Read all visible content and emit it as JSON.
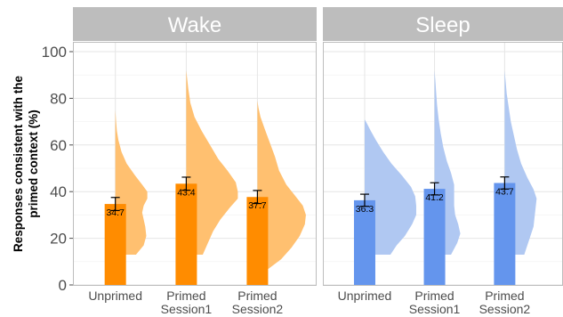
{
  "chart_data": {
    "type": "bar",
    "ylabel": "Responses consistent with the primed context (%)",
    "ylim": [
      0,
      100
    ],
    "yticks": [
      0,
      20,
      40,
      60,
      80,
      100
    ],
    "categories": [
      "Unprimed",
      "Primed Session1",
      "Primed Session2"
    ],
    "category_lines": [
      [
        "Unprimed"
      ],
      [
        "Primed",
        "Session1"
      ],
      [
        "Primed",
        "Session2"
      ]
    ],
    "grid": true,
    "panels": [
      {
        "name": "Wake",
        "values": [
          34.7,
          43.4,
          37.7
        ],
        "value_labels": [
          "34.7",
          "43.4",
          "37.7"
        ],
        "errors": [
          2.8,
          2.8,
          2.8
        ],
        "bar_color": "#ff8c00",
        "violin_color": "#ffc070",
        "violins": [
          {
            "min": 13,
            "max": 75,
            "profile": [
              [
                13,
                0.4
              ],
              [
                17,
                0.55
              ],
              [
                21,
                0.6
              ],
              [
                25,
                0.58
              ],
              [
                28,
                0.55
              ],
              [
                31,
                0.52
              ],
              [
                34,
                0.55
              ],
              [
                37,
                0.62
              ],
              [
                40,
                0.62
              ],
              [
                43,
                0.52
              ],
              [
                47,
                0.38
              ],
              [
                52,
                0.22
              ],
              [
                57,
                0.12
              ],
              [
                62,
                0.06
              ],
              [
                66,
                0.03
              ],
              [
                70,
                0.015
              ],
              [
                75,
                0.0
              ]
            ]
          },
          {
            "min": 13,
            "max": 92,
            "profile": [
              [
                13,
                0.32
              ],
              [
                18,
                0.42
              ],
              [
                23,
                0.52
              ],
              [
                28,
                0.66
              ],
              [
                33,
                0.84
              ],
              [
                37,
                1.0
              ],
              [
                40,
                1.0
              ],
              [
                44,
                0.96
              ],
              [
                49,
                0.8
              ],
              [
                54,
                0.62
              ],
              [
                60,
                0.46
              ],
              [
                66,
                0.3
              ],
              [
                72,
                0.16
              ],
              [
                78,
                0.08
              ],
              [
                84,
                0.04
              ],
              [
                88,
                0.02
              ],
              [
                92,
                0.0
              ]
            ]
          },
          {
            "min": 4,
            "max": 79,
            "profile": [
              [
                4,
                0.0
              ],
              [
                7,
                0.22
              ],
              [
                11,
                0.46
              ],
              [
                16,
                0.66
              ],
              [
                21,
                0.82
              ],
              [
                26,
                0.92
              ],
              [
                30,
                0.94
              ],
              [
                34,
                0.88
              ],
              [
                38,
                0.74
              ],
              [
                43,
                0.56
              ],
              [
                49,
                0.42
              ],
              [
                55,
                0.34
              ],
              [
                61,
                0.24
              ],
              [
                67,
                0.14
              ],
              [
                72,
                0.06
              ],
              [
                76,
                0.02
              ],
              [
                79,
                0.0
              ]
            ]
          }
        ]
      },
      {
        "name": "Sleep",
        "values": [
          36.3,
          41.2,
          43.7
        ],
        "value_labels": [
          "36.3",
          "41.2",
          "43.7"
        ],
        "errors": [
          2.6,
          2.6,
          2.6
        ],
        "bar_color": "#6495ed",
        "violin_color": "#b0c8f2",
        "violins": [
          {
            "min": 13,
            "max": 71,
            "profile": [
              [
                13,
                0.5
              ],
              [
                17,
                0.62
              ],
              [
                21,
                0.78
              ],
              [
                26,
                0.92
              ],
              [
                30,
                1.0
              ],
              [
                34,
                1.0
              ],
              [
                38,
                0.98
              ],
              [
                42,
                0.9
              ],
              [
                47,
                0.72
              ],
              [
                52,
                0.52
              ],
              [
                57,
                0.36
              ],
              [
                62,
                0.22
              ],
              [
                66,
                0.12
              ],
              [
                69,
                0.05
              ],
              [
                71,
                0.0
              ]
            ]
          },
          {
            "min": 13,
            "max": 92,
            "profile": [
              [
                13,
                0.32
              ],
              [
                18,
                0.44
              ],
              [
                22,
                0.5
              ],
              [
                26,
                0.46
              ],
              [
                30,
                0.4
              ],
              [
                34,
                0.38
              ],
              [
                38,
                0.38
              ],
              [
                43,
                0.38
              ],
              [
                48,
                0.32
              ],
              [
                53,
                0.24
              ],
              [
                59,
                0.17
              ],
              [
                65,
                0.12
              ],
              [
                71,
                0.08
              ],
              [
                77,
                0.05
              ],
              [
                83,
                0.03
              ],
              [
                88,
                0.015
              ],
              [
                92,
                0.0
              ]
            ]
          },
          {
            "min": 13,
            "max": 92,
            "profile": [
              [
                13,
                0.38
              ],
              [
                17,
                0.44
              ],
              [
                21,
                0.5
              ],
              [
                25,
                0.56
              ],
              [
                29,
                0.58
              ],
              [
                33,
                0.6
              ],
              [
                37,
                0.62
              ],
              [
                41,
                0.56
              ],
              [
                46,
                0.44
              ],
              [
                52,
                0.32
              ],
              [
                58,
                0.24
              ],
              [
                64,
                0.18
              ],
              [
                70,
                0.12
              ],
              [
                76,
                0.08
              ],
              [
                82,
                0.04
              ],
              [
                87,
                0.02
              ],
              [
                92,
                0.0
              ]
            ]
          }
        ]
      }
    ]
  }
}
